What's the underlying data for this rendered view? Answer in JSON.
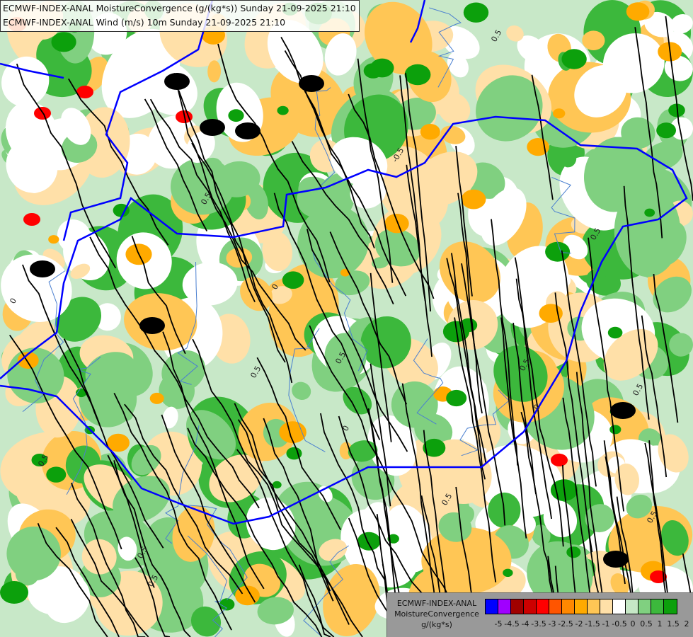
{
  "header": {
    "line1": "ECMWF-INDEX-ANAL MoistureConvergence (g/(kg*s)) Sunday 21-09-2025 21:10",
    "line2": "ECMWF-INDEX-ANAL Wind (m/s) 10m Sunday 21-09-2025 21:10"
  },
  "legend": {
    "title_line1": "ECMWF-INDEX-ANAL",
    "title_line2": "MoistureConvergence",
    "unit": "g/(kg*s)",
    "colors": [
      "#0000ff",
      "#a000ff",
      "#a00000",
      "#cc0000",
      "#ff0000",
      "#ff5500",
      "#ff8800",
      "#ffaa00",
      "#ffc655",
      "#ffe0a8",
      "#ffffff",
      "#c6e8c6",
      "#80d080",
      "#3cb83c",
      "#0ca00c"
    ],
    "labels": [
      "-5",
      "-4.5",
      "-4",
      "-3.5",
      "-3",
      "-2.5",
      "-2",
      "-1.5",
      "-1",
      "-0.5",
      "0",
      "0.5",
      "1",
      "1.5",
      "2"
    ]
  },
  "map": {
    "contour_labels": [
      "0",
      "0.5",
      "-0.5"
    ],
    "border_color": "#0000ff",
    "river_color": "#4a7fd0",
    "streamline_color": "#000000"
  }
}
